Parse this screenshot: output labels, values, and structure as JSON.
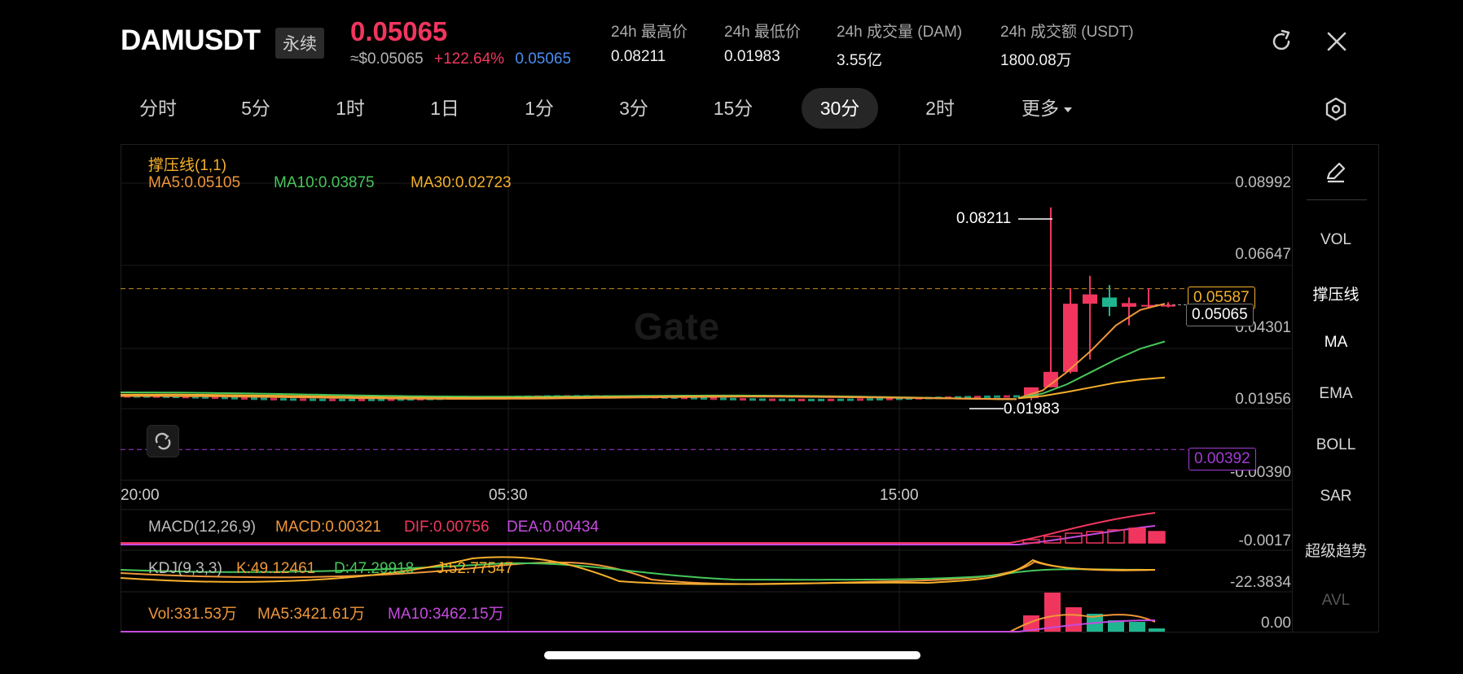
{
  "header": {
    "symbol": "DAMUSDT",
    "contract_type": "永续",
    "last_price": "0.05065",
    "usd_price": "≈$0.05065",
    "change_pct": "+122.64%",
    "mark_price": "0.05065",
    "stats": [
      {
        "label": "24h 最高价",
        "value": "0.08211"
      },
      {
        "label": "24h 最低价",
        "value": "0.01983"
      },
      {
        "label": "24h 成交量 (DAM)",
        "value": "3.55亿"
      },
      {
        "label": "24h 成交额 (USDT)",
        "value": "1800.08万"
      }
    ],
    "icons": [
      "refresh-icon",
      "close-icon"
    ]
  },
  "intervals": {
    "tabs": [
      "分时",
      "5分",
      "1时",
      "1日",
      "1分",
      "3分",
      "15分",
      "30分",
      "2时",
      "更多"
    ],
    "active": "30分"
  },
  "sidebar": {
    "items": [
      "VOL",
      "撑压线",
      "MA",
      "EMA",
      "BOLL",
      "SAR",
      "超级趋势",
      "AVL"
    ]
  },
  "main_chart": {
    "indicator_title": "撑压线(1,1)",
    "ma5": "MA5:0.05105",
    "ma10": "MA10:0.03875",
    "ma30": "MA30:0.02723",
    "y_ticks": [
      "0.08992",
      "0.06647",
      "0.04301",
      "0.01956",
      "-0.00390"
    ],
    "resistance_label": "0.05587",
    "support_label": "0.00392",
    "last_label": "0.05065",
    "high_label": "0.08211",
    "low_label": "0.01983",
    "x_ticks": [
      "20:00",
      "05:30",
      "15:00"
    ],
    "watermark": "Gate",
    "colors": {
      "up": "#f0365e",
      "down": "#1fb58f",
      "ma5": "#f0973a",
      "ma10": "#46c75a",
      "ma30": "#f5b02c",
      "support": "#a23bd4"
    }
  },
  "macd": {
    "title": "MACD(12,26,9)",
    "macd": "MACD:0.00321",
    "dif": "DIF:0.00756",
    "dea": "DEA:0.00434",
    "tick": "-0.0017"
  },
  "kdj": {
    "title": "KDJ(9,3,3)",
    "k": "K:49.12461",
    "d": "D:47.29918",
    "j": "J:52.77547",
    "tick": "-22.3834"
  },
  "volume": {
    "vol": "Vol:331.53万",
    "ma5": "MA5:3421.61万",
    "ma10": "MA10:3462.15万",
    "tick": "0.00"
  },
  "chart_data": {
    "type": "candlestick",
    "x_ticks": [
      "20:00",
      "05:30",
      "15:00"
    ],
    "y_range": [
      -0.0039,
      0.08992
    ],
    "candles": [
      {
        "o": 0.0205,
        "h": 0.024,
        "l": 0.0198,
        "c": 0.024
      },
      {
        "o": 0.024,
        "h": 0.0821,
        "l": 0.024,
        "c": 0.029
      },
      {
        "o": 0.029,
        "h": 0.056,
        "l": 0.0285,
        "c": 0.051
      },
      {
        "o": 0.051,
        "h": 0.06,
        "l": 0.033,
        "c": 0.054
      },
      {
        "o": 0.053,
        "h": 0.057,
        "l": 0.047,
        "c": 0.05
      },
      {
        "o": 0.05,
        "h": 0.053,
        "l": 0.044,
        "c": 0.0512
      },
      {
        "o": 0.0506,
        "h": 0.056,
        "l": 0.0495,
        "c": 0.0506
      },
      {
        "o": 0.0506,
        "h": 0.0515,
        "l": 0.0498,
        "c": 0.0506
      }
    ],
    "series": [
      {
        "name": "MA5",
        "values": [
          0.0205,
          0.023,
          0.029,
          0.036,
          0.044,
          0.049,
          0.051
        ]
      },
      {
        "name": "MA10",
        "values": [
          0.0205,
          0.022,
          0.025,
          0.029,
          0.033,
          0.0365,
          0.0388
        ]
      },
      {
        "name": "MA30",
        "values": [
          0.0205,
          0.0212,
          0.0225,
          0.024,
          0.0255,
          0.0265,
          0.0272
        ]
      }
    ],
    "reference_lines": {
      "resistance": 0.05587,
      "support": 0.00392,
      "last": 0.05065
    }
  }
}
